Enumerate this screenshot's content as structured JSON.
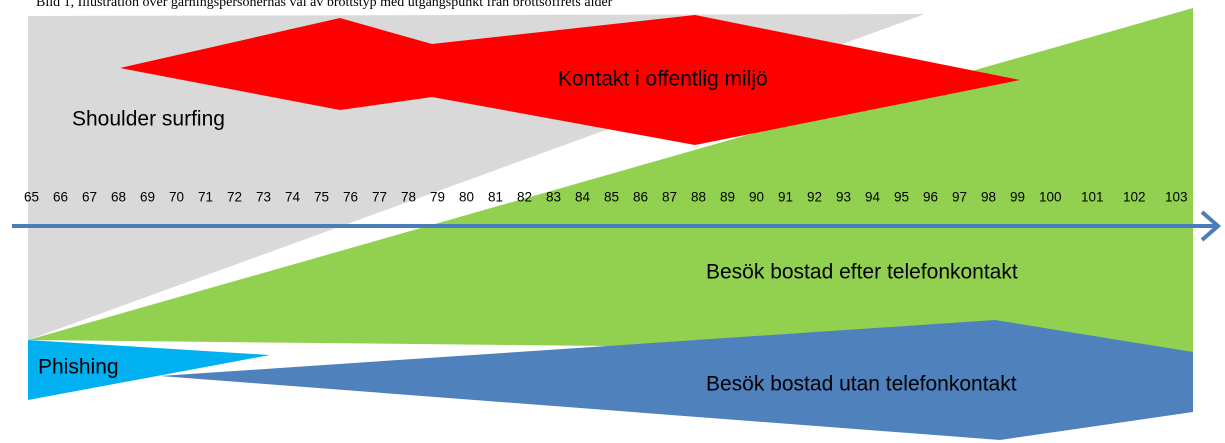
{
  "caption": "Bild 1, Illustration över gärningspersonernas val av brottstyp med utgångspunkt från brottsoffrets ålder",
  "regions": {
    "shoulder_surfing": "Shoulder surfing",
    "public_contact": "Kontakt i offentlig miljö",
    "visit_after_phone": "Besök bostad efter telefonkontakt",
    "phishing": "Phishing",
    "visit_without_phone": "Besök bostad utan telefonkontakt"
  },
  "axis": {
    "ages": [
      65,
      66,
      67,
      68,
      69,
      70,
      71,
      72,
      73,
      74,
      75,
      76,
      77,
      78,
      79,
      80,
      81,
      82,
      83,
      84,
      85,
      86,
      87,
      88,
      89,
      90,
      91,
      92,
      93,
      94,
      95,
      96,
      97,
      98,
      99,
      100,
      101,
      102,
      103
    ]
  }
}
